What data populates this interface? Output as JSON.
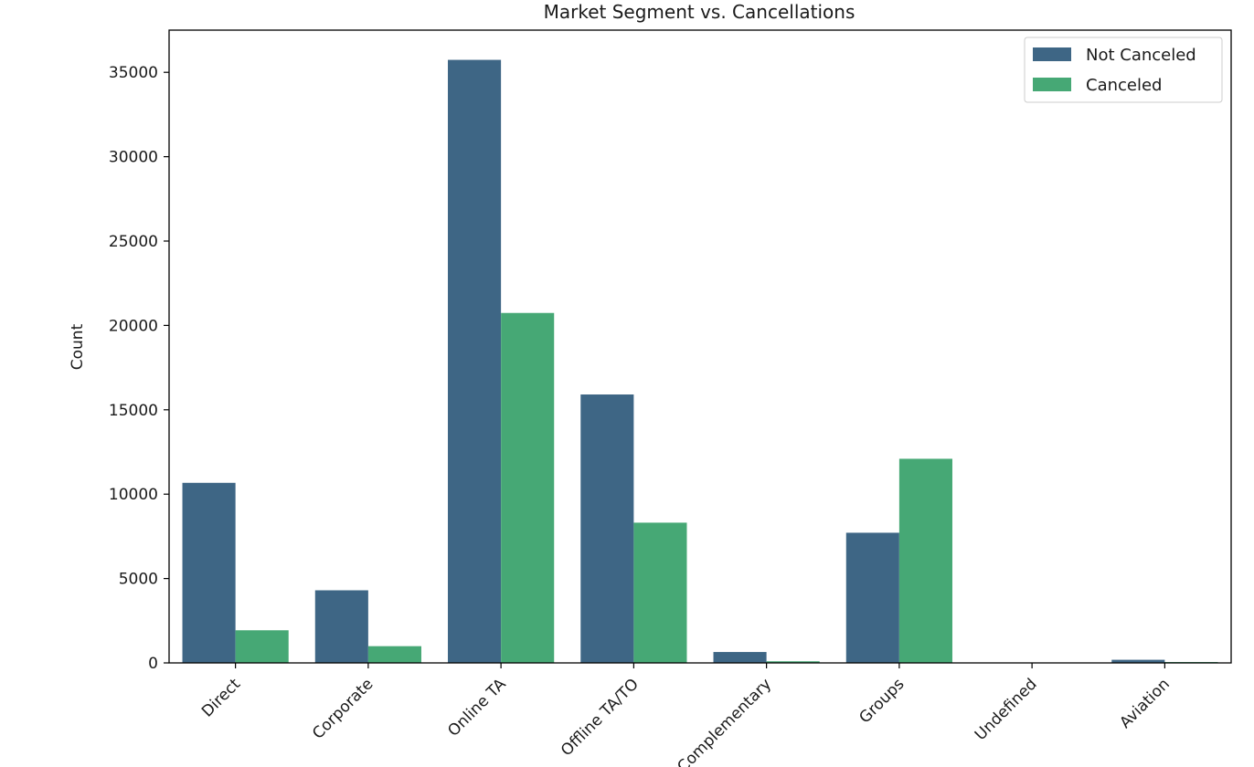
{
  "chart_data": {
    "type": "bar",
    "title": "Market Segment vs. Cancellations",
    "xlabel": "",
    "ylabel": "Count",
    "categories": [
      "Direct",
      "Corporate",
      "Online TA",
      "Offline TA/TO",
      "Complementary",
      "Groups",
      "Undefined",
      "Aviation"
    ],
    "series": [
      {
        "name": "Not Canceled",
        "color": "#3e6685",
        "values": [
          10672,
          4303,
          35738,
          15908,
          646,
          7714,
          0,
          185
        ]
      },
      {
        "name": "Canceled",
        "color": "#46a875",
        "values": [
          1934,
          992,
          20739,
          8311,
          97,
          12097,
          2,
          52
        ]
      }
    ],
    "ylim": [
      0,
      37500
    ],
    "yticks": [
      0,
      5000,
      10000,
      15000,
      20000,
      25000,
      30000,
      35000
    ],
    "grid": false,
    "legend_position": "top-right"
  }
}
